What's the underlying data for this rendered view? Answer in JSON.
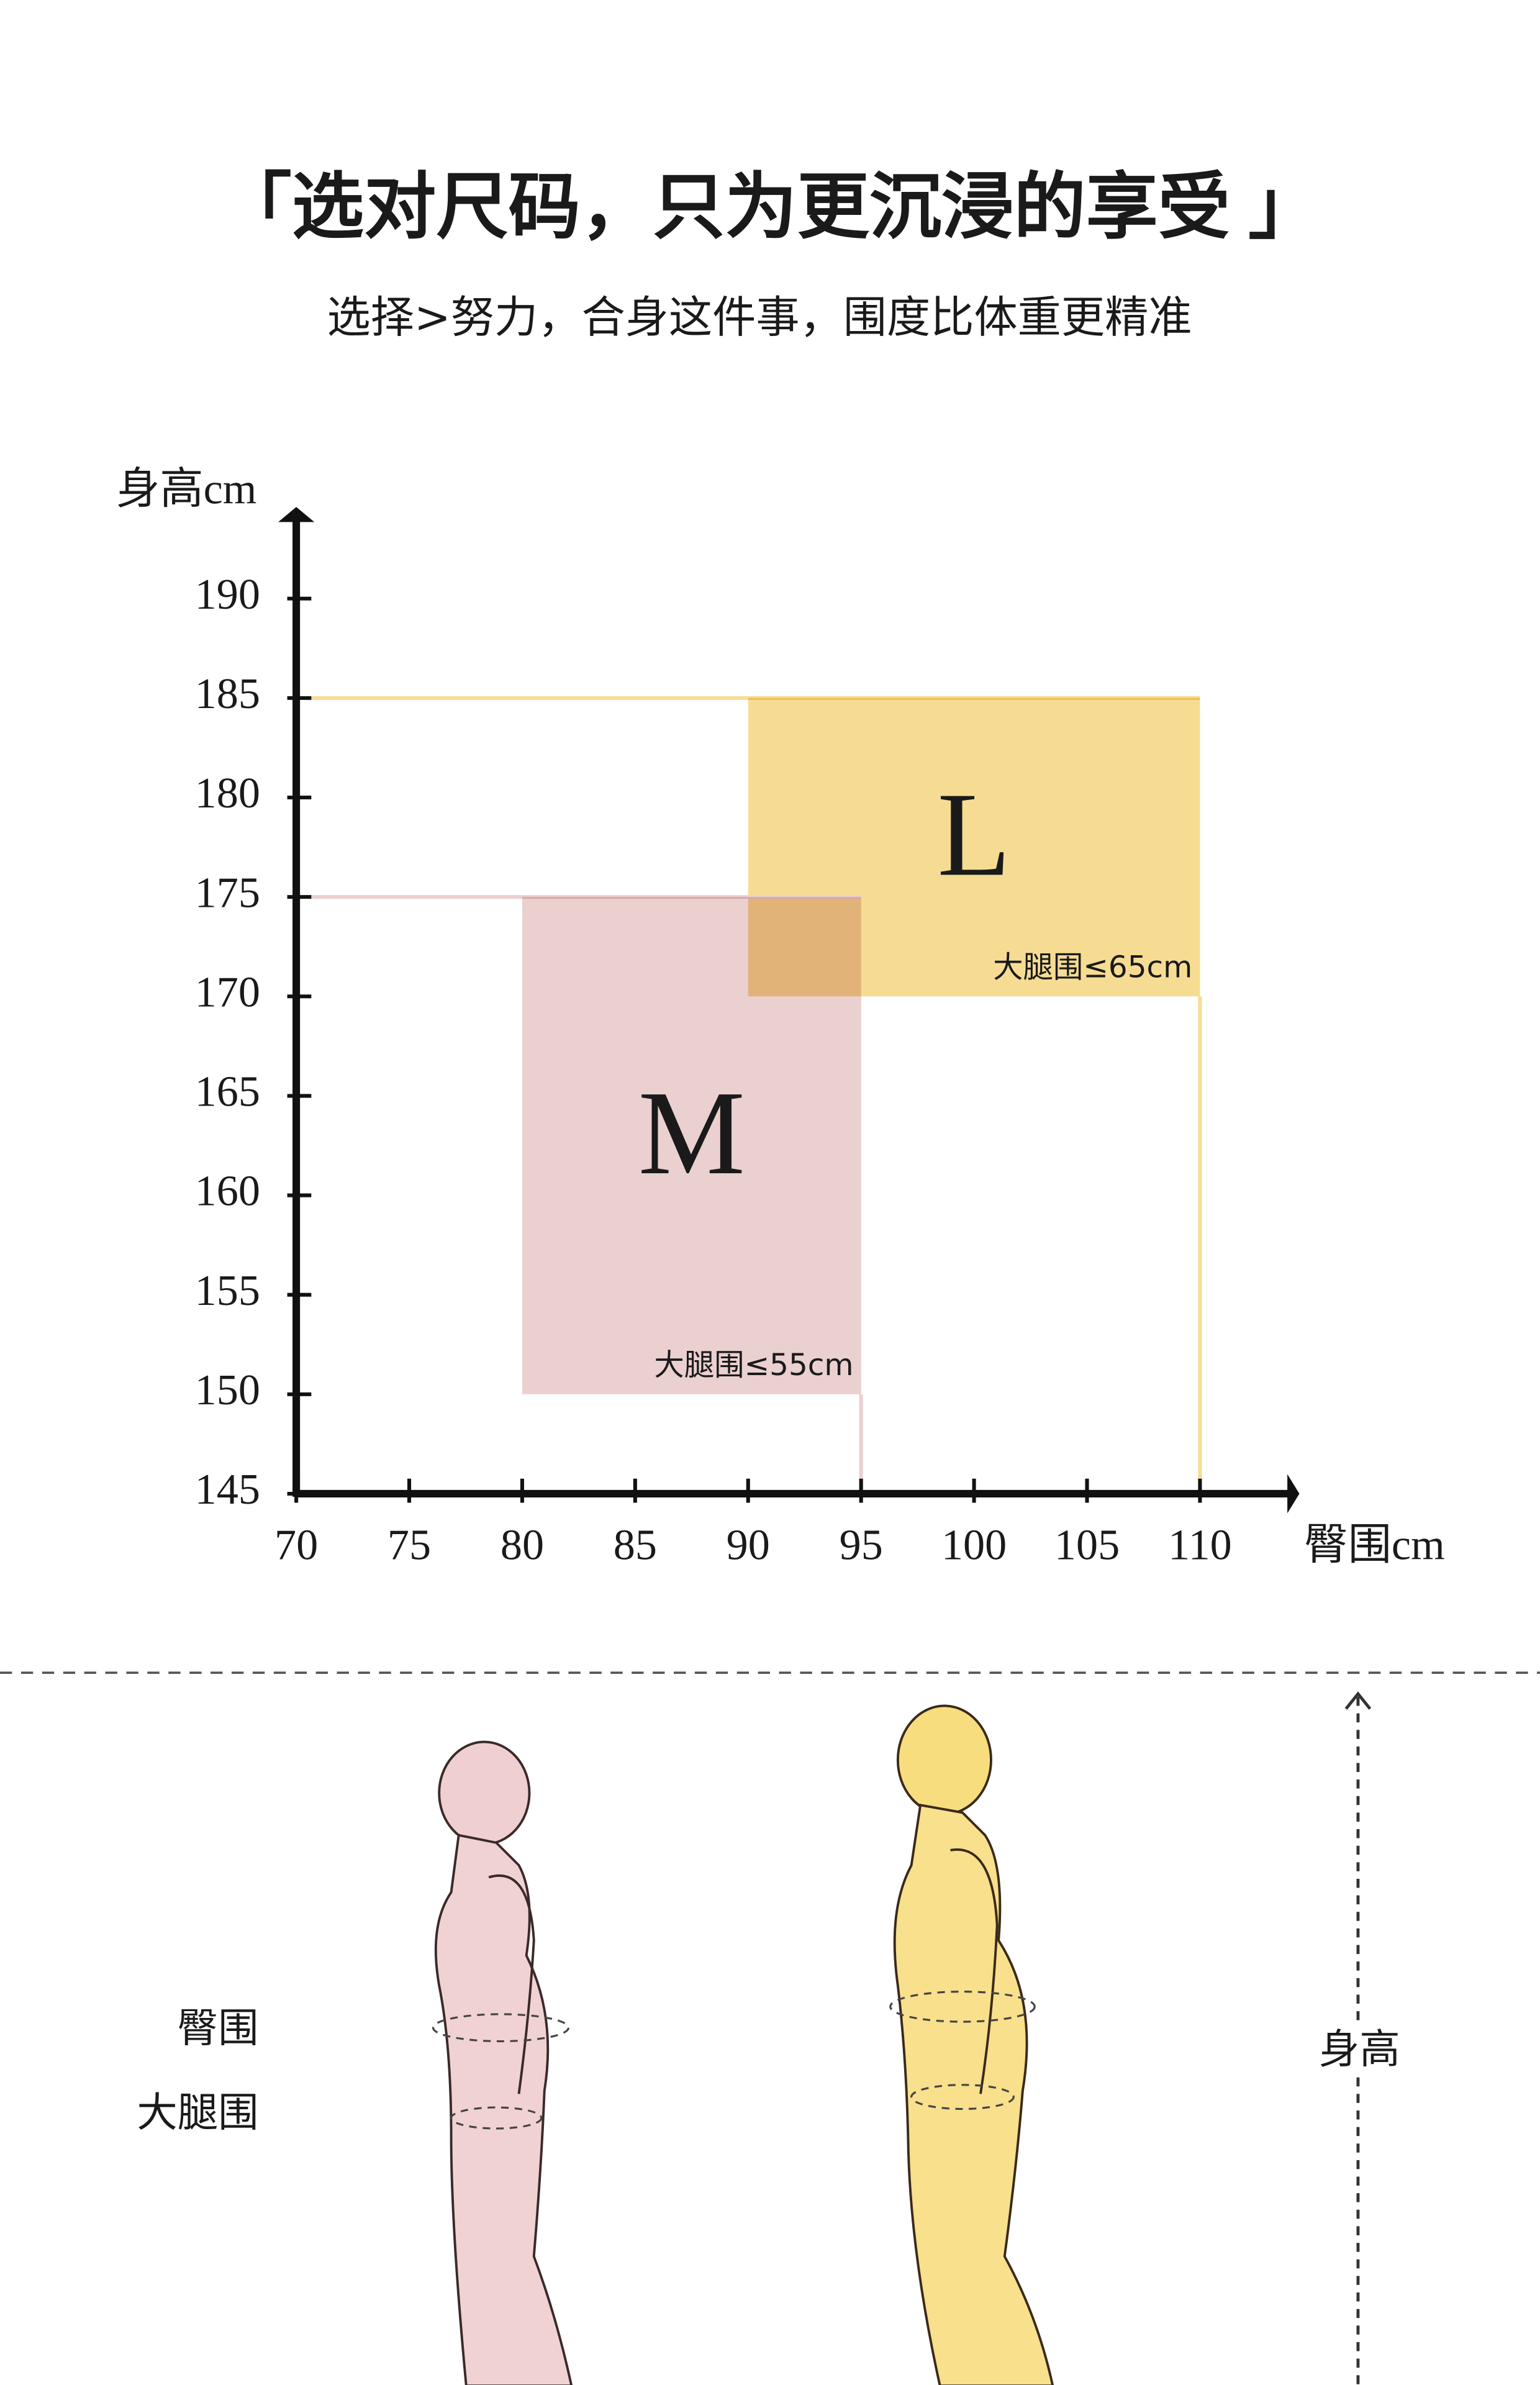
{
  "header": {
    "title": "「选对尺码，只为更沉浸的享受 」",
    "subtitle": "选择>努力，合身这件事，围度比体重更精准"
  },
  "chart_data": {
    "type": "region",
    "y_label": "身高cm",
    "x_label": "臀围cm",
    "xlim": [
      70,
      114
    ],
    "ylim": [
      145,
      194
    ],
    "xticks": [
      70,
      75,
      80,
      85,
      90,
      95,
      100,
      105,
      110
    ],
    "yticks": [
      145,
      150,
      155,
      160,
      165,
      170,
      175,
      180,
      185,
      190
    ],
    "series": [
      {
        "name": "L",
        "color": "#f6dc93",
        "x": [
          90,
          110
        ],
        "y": [
          170,
          185
        ],
        "note": "大腿围≤65cm"
      },
      {
        "name": "M",
        "color": "#ebd0d0",
        "x": [
          80,
          95
        ],
        "y": [
          150,
          175
        ],
        "note": "大腿围≤55cm"
      }
    ]
  },
  "figures": {
    "hip_label": "臀围",
    "thigh_label": "大腿围",
    "height_label": "身高"
  }
}
